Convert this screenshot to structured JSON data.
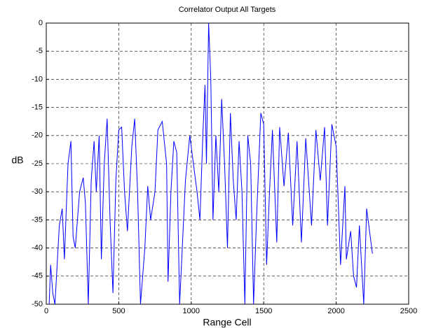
{
  "chart_data": {
    "type": "line",
    "title": "Correlator Output All Targets",
    "xlabel": "Range Cell",
    "ylabel": "dB",
    "x": [
      20,
      30,
      45,
      60,
      90,
      110,
      125,
      150,
      170,
      185,
      200,
      230,
      255,
      270,
      290,
      310,
      330,
      345,
      365,
      380,
      400,
      420,
      440,
      460,
      480,
      500,
      520,
      540,
      560,
      590,
      610,
      630,
      650,
      680,
      700,
      720,
      750,
      770,
      800,
      830,
      840,
      860,
      880,
      900,
      920,
      940,
      960,
      990,
      1010,
      1040,
      1060,
      1080,
      1095,
      1105,
      1120,
      1135,
      1150,
      1170,
      1190,
      1210,
      1230,
      1250,
      1270,
      1290,
      1310,
      1330,
      1350,
      1370,
      1390,
      1410,
      1430,
      1450,
      1480,
      1500,
      1520,
      1540,
      1560,
      1590,
      1610,
      1640,
      1670,
      1700,
      1730,
      1760,
      1790,
      1830,
      1860,
      1890,
      1920,
      1940,
      1970,
      2000,
      2030,
      2060,
      2070,
      2100,
      2120,
      2140,
      2160,
      2190,
      2210,
      2235,
      2250
    ],
    "series": [
      {
        "name": "Correlator Output",
        "color": "#0000ff",
        "values": [
          -50,
          -43,
          -48,
          -50,
          -36,
          -33,
          -42,
          -25,
          -21,
          -38,
          -40,
          -30,
          -27.5,
          -32,
          -50,
          -28,
          -21,
          -30,
          -20,
          -42,
          -25,
          -17,
          -35,
          -48,
          -28,
          -19,
          -18.5,
          -30,
          -37,
          -22,
          -17,
          -30,
          -50,
          -40,
          -29,
          -35,
          -30,
          -19,
          -17.5,
          -25,
          -46,
          -30,
          -21,
          -23,
          -50,
          -39,
          -28,
          -20,
          -24,
          -30,
          -35,
          -20,
          -11,
          -25,
          0,
          -10,
          -35,
          -20,
          -30,
          -13.5,
          -25,
          -40,
          -16,
          -28,
          -35,
          -21,
          -30,
          -50,
          -20,
          -25,
          -50,
          -35,
          -16,
          -18,
          -43,
          -30,
          -19,
          -39,
          -18.5,
          -29,
          -19.5,
          -36,
          -21,
          -39,
          -20.5,
          -36,
          -19,
          -28,
          -18.5,
          -36,
          -18,
          -22,
          -43,
          -29,
          -42,
          -37,
          -45,
          -47,
          -36,
          -50,
          -33,
          -38,
          -41
        ]
      }
    ],
    "xlim": [
      0,
      2500
    ],
    "xticks": [
      0,
      500,
      1000,
      1500,
      2000,
      2500
    ],
    "ylim": [
      -50,
      0
    ],
    "yticks": [
      -50,
      -45,
      -40,
      -35,
      -30,
      -25,
      -20,
      -15,
      -10,
      -5,
      0
    ],
    "grid": true
  }
}
